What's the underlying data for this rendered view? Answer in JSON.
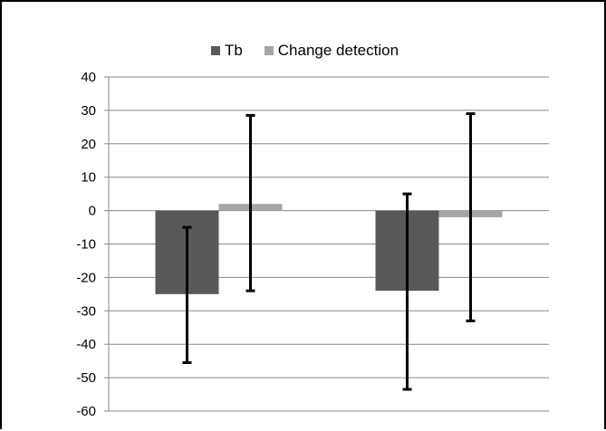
{
  "chart_data": {
    "type": "bar",
    "categories": [
      "",
      ""
    ],
    "ylim": [
      -60,
      40
    ],
    "ytick_step": 10,
    "grid": true,
    "legend_position": "top",
    "series": [
      {
        "name": "Tb",
        "color": "#595959",
        "values": [
          -25,
          -24
        ],
        "error_low": [
          -45.5,
          -53.5
        ],
        "error_high": [
          -5,
          5
        ]
      },
      {
        "name": "Change detection",
        "color": "#a6a6a6",
        "values": [
          2,
          -2
        ],
        "error_low": [
          -24,
          -33
        ],
        "error_high": [
          28.5,
          29
        ]
      }
    ]
  }
}
